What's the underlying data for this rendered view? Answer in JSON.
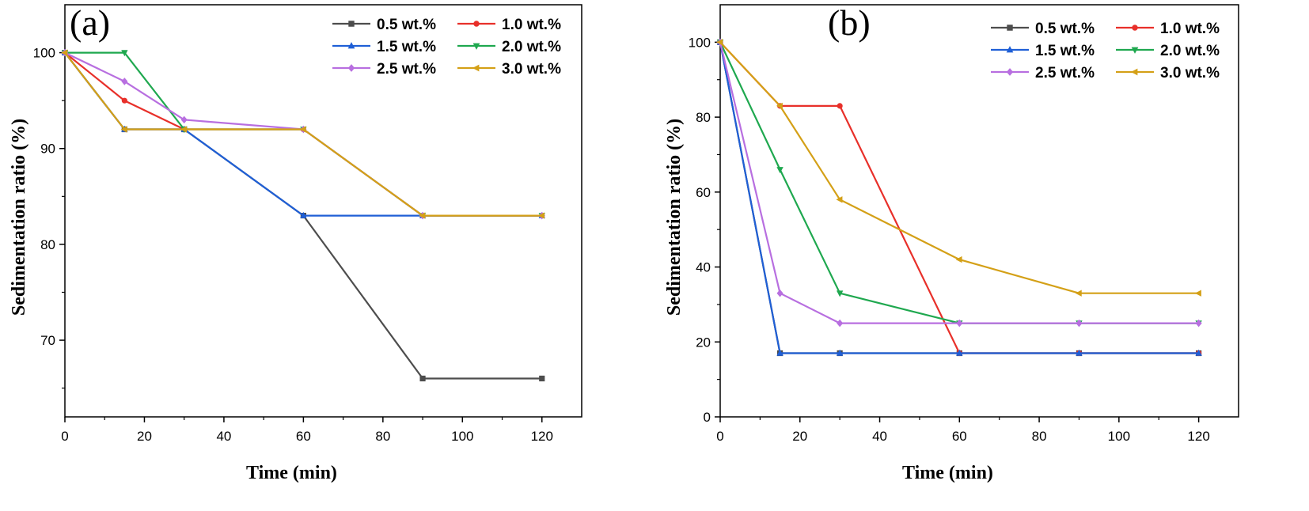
{
  "chart_data": [
    {
      "type": "line",
      "panel_label": "(a)",
      "xlabel": "Time (min)",
      "ylabel": "Sedimentation ratio (%)",
      "xlim": [
        0,
        130
      ],
      "ylim": [
        62,
        105
      ],
      "xticks": [
        0,
        20,
        40,
        60,
        80,
        100,
        120
      ],
      "yticks": [
        70,
        80,
        90,
        100
      ],
      "legend_position": "top-right",
      "series": [
        {
          "name": "0.5 wt.%",
          "color": "#4d4d4d",
          "marker": "square",
          "x": [
            0,
            15,
            30,
            60,
            90,
            120
          ],
          "y": [
            100,
            92,
            92,
            83,
            66,
            66
          ]
        },
        {
          "name": "1.0 wt.%",
          "color": "#e8302a",
          "marker": "circle",
          "x": [
            0,
            15,
            30,
            60,
            90,
            120
          ],
          "y": [
            100,
            95,
            92,
            92,
            83,
            83
          ]
        },
        {
          "name": "1.5 wt.%",
          "color": "#1f5fd6",
          "marker": "triangle-up",
          "x": [
            0,
            15,
            30,
            60,
            90,
            120
          ],
          "y": [
            100,
            92,
            92,
            83,
            83,
            83
          ]
        },
        {
          "name": "2.0 wt.%",
          "color": "#1fa84f",
          "marker": "triangle-down",
          "x": [
            0,
            15,
            30,
            60,
            90,
            120
          ],
          "y": [
            100,
            100,
            92,
            92,
            83,
            83
          ]
        },
        {
          "name": "2.5 wt.%",
          "color": "#b86fe0",
          "marker": "diamond",
          "x": [
            0,
            15,
            30,
            60,
            90,
            120
          ],
          "y": [
            100,
            97,
            93,
            92,
            83,
            83
          ]
        },
        {
          "name": "3.0 wt.%",
          "color": "#d4a017",
          "marker": "triangle-left",
          "x": [
            0,
            15,
            30,
            60,
            90,
            120
          ],
          "y": [
            100,
            92,
            92,
            92,
            83,
            83
          ]
        }
      ]
    },
    {
      "type": "line",
      "panel_label": "(b)",
      "xlabel": "Time (min)",
      "ylabel": "Sedimentation ratio (%)",
      "xlim": [
        0,
        130
      ],
      "ylim": [
        0,
        110
      ],
      "xticks": [
        0,
        20,
        40,
        60,
        80,
        100,
        120
      ],
      "yticks": [
        0,
        20,
        40,
        60,
        80,
        100
      ],
      "legend_position": "top-right",
      "series": [
        {
          "name": "0.5 wt.%",
          "color": "#4d4d4d",
          "marker": "square",
          "x": [
            0,
            15,
            30,
            60,
            90,
            120
          ],
          "y": [
            100,
            17,
            17,
            17,
            17,
            17
          ]
        },
        {
          "name": "1.0 wt.%",
          "color": "#e8302a",
          "marker": "circle",
          "x": [
            0,
            15,
            30,
            60,
            90,
            120
          ],
          "y": [
            100,
            83,
            83,
            17,
            17,
            17
          ]
        },
        {
          "name": "1.5 wt.%",
          "color": "#1f5fd6",
          "marker": "triangle-up",
          "x": [
            0,
            15,
            30,
            60,
            90,
            120
          ],
          "y": [
            100,
            17,
            17,
            17,
            17,
            17
          ]
        },
        {
          "name": "2.0 wt.%",
          "color": "#1fa84f",
          "marker": "triangle-down",
          "x": [
            0,
            15,
            30,
            60,
            90,
            120
          ],
          "y": [
            100,
            66,
            33,
            25,
            25,
            25
          ]
        },
        {
          "name": "2.5 wt.%",
          "color": "#b86fe0",
          "marker": "diamond",
          "x": [
            0,
            15,
            30,
            60,
            90,
            120
          ],
          "y": [
            100,
            33,
            25,
            25,
            25,
            25
          ]
        },
        {
          "name": "3.0 wt.%",
          "color": "#d4a017",
          "marker": "triangle-left",
          "x": [
            0,
            15,
            30,
            60,
            90,
            120
          ],
          "y": [
            100,
            83,
            58,
            42,
            33,
            33
          ]
        }
      ]
    }
  ]
}
